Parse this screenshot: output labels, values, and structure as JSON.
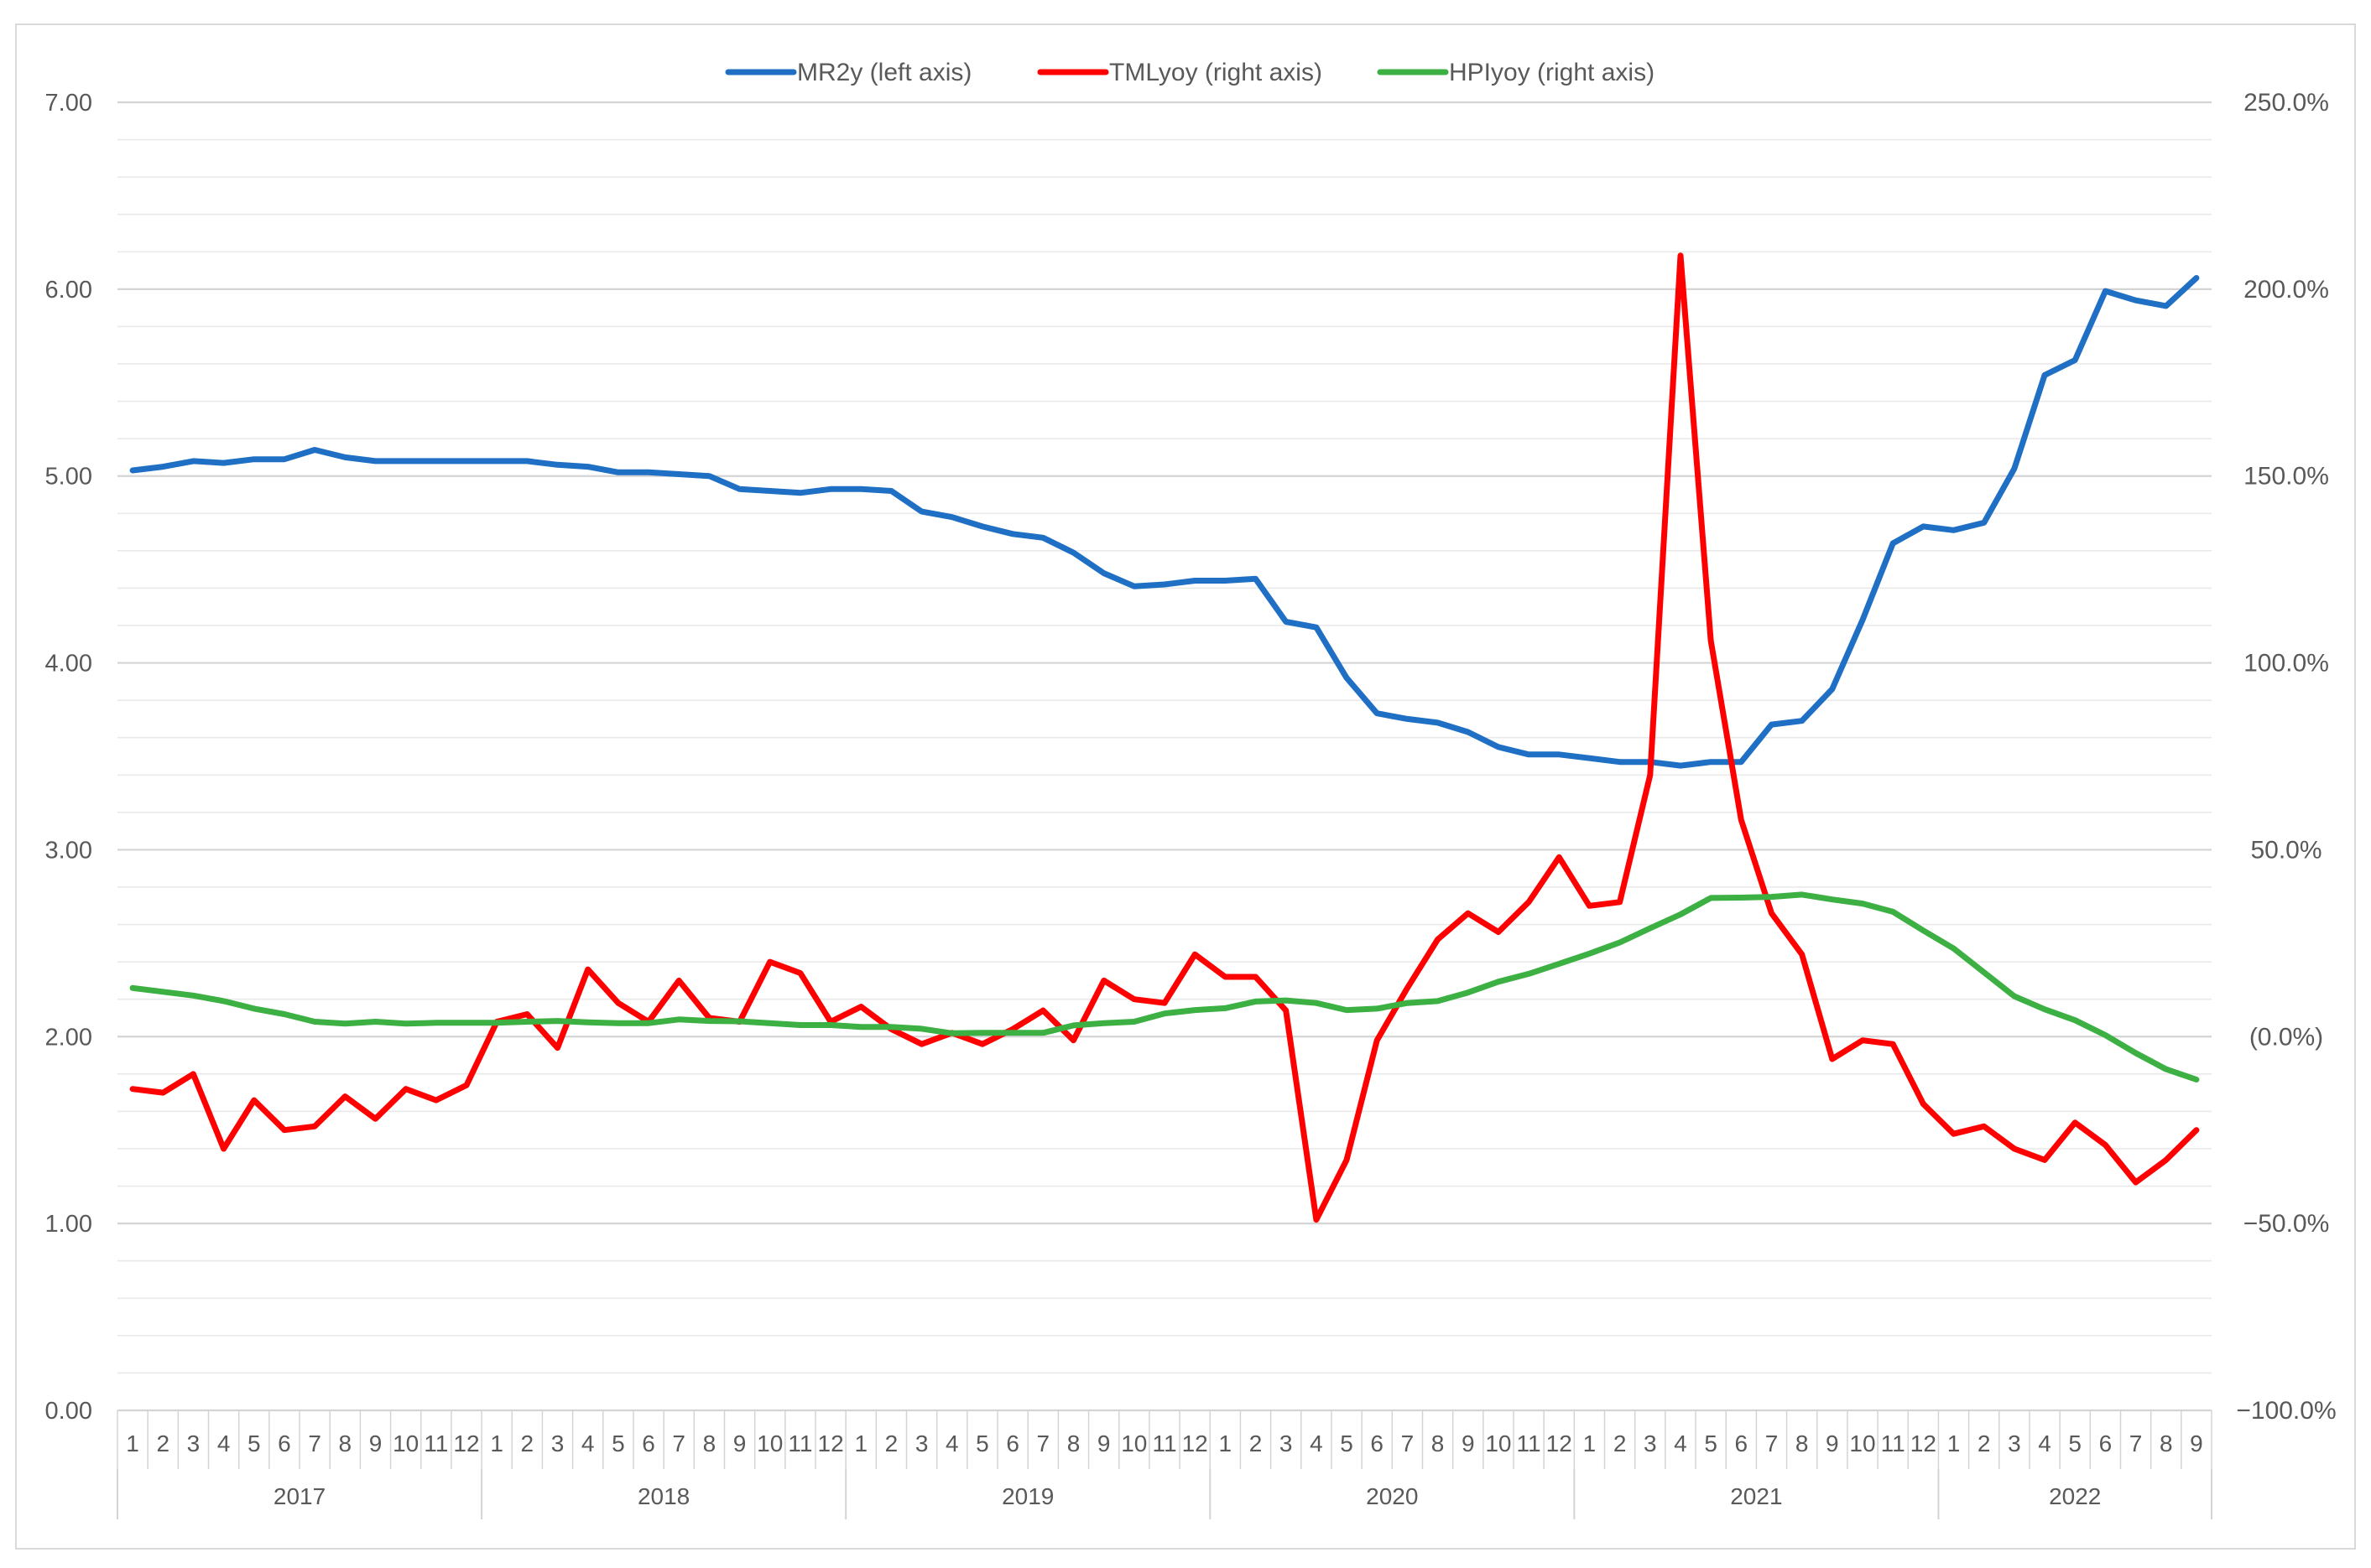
{
  "chart_data": {
    "type": "line",
    "years": [
      "2017",
      "2018",
      "2019",
      "2020",
      "2021",
      "2022"
    ],
    "month_labels": [
      "1",
      "2",
      "3",
      "4",
      "5",
      "6",
      "7",
      "8",
      "9",
      "10",
      "11",
      "12",
      "1",
      "2",
      "3",
      "4",
      "5",
      "6",
      "7",
      "8",
      "9",
      "10",
      "11",
      "12",
      "1",
      "2",
      "3",
      "4",
      "5",
      "6",
      "7",
      "8",
      "9",
      "10",
      "11",
      "12",
      "1",
      "2",
      "3",
      "4",
      "5",
      "6",
      "7",
      "8",
      "9",
      "10",
      "11",
      "12",
      "1",
      "2",
      "3",
      "4",
      "5",
      "6",
      "7",
      "8",
      "9",
      "10",
      "11",
      "12",
      "1",
      "2",
      "3",
      "4",
      "5",
      "6",
      "7",
      "8",
      "9"
    ],
    "y_left": {
      "ticks": [
        "0.00",
        "1.00",
        "2.00",
        "3.00",
        "4.00",
        "5.00",
        "6.00",
        "7.00"
      ],
      "range": [
        0,
        7
      ]
    },
    "y_right": {
      "ticks": [
        "−100.0%",
        "−50.0%",
        "(0.0%)",
        "50.0%",
        "100.0%",
        "150.0%",
        "200.0%",
        "250.0%"
      ],
      "range": [
        -100,
        250
      ]
    },
    "grid": true,
    "legend_position": "top",
    "series": [
      {
        "name": "MR2y (left axis)",
        "axis": "left",
        "color": "#1f6fc5",
        "values": [
          5.03,
          5.05,
          5.08,
          5.07,
          5.09,
          5.09,
          5.14,
          5.1,
          5.08,
          5.08,
          5.08,
          5.08,
          5.08,
          5.08,
          5.06,
          5.05,
          5.02,
          5.02,
          5.01,
          5.0,
          4.93,
          4.92,
          4.91,
          4.93,
          4.93,
          4.92,
          4.81,
          4.78,
          4.73,
          4.69,
          4.67,
          4.59,
          4.48,
          4.41,
          4.42,
          4.44,
          4.44,
          4.45,
          4.22,
          4.19,
          3.92,
          3.73,
          3.7,
          3.68,
          3.63,
          3.55,
          3.51,
          3.51,
          3.49,
          3.47,
          3.47,
          3.45,
          3.47,
          3.47,
          3.67,
          3.69,
          3.86,
          4.23,
          4.64,
          4.73,
          4.71,
          4.75,
          5.04,
          5.54,
          5.62,
          5.99,
          5.94,
          5.91,
          6.06
        ]
      },
      {
        "name": "TMLyoy (right axis)",
        "axis": "right",
        "color": "#ff0000",
        "values": [
          -14,
          -15,
          -10,
          -30,
          -17,
          -25,
          -24,
          -16,
          -22,
          -14,
          -17,
          -13,
          4,
          6,
          -3,
          18,
          9,
          4,
          15,
          5,
          4,
          20,
          17,
          4,
          8,
          2,
          -2,
          1,
          -2,
          2,
          7,
          -1,
          15,
          10,
          9,
          22,
          16,
          16,
          7,
          -49,
          -33,
          -1,
          13,
          26,
          33,
          28,
          36,
          48,
          35,
          36,
          70,
          209,
          106,
          58,
          33,
          22,
          -6,
          -1,
          -2,
          -18,
          -26,
          -24,
          -30,
          -33,
          -23,
          -29,
          -39,
          -33,
          -25
        ]
      },
      {
        "name": "HPIyoy (right axis)",
        "axis": "right",
        "color": "#3cb043",
        "values": [
          13,
          12,
          11,
          9.5,
          7.5,
          6,
          4,
          3.5,
          4,
          3.5,
          3.7,
          3.7,
          3.7,
          4,
          4.2,
          3.8,
          3.6,
          3.6,
          4.6,
          4.2,
          4.1,
          3.6,
          3.1,
          3.1,
          2.6,
          2.6,
          2.1,
          0.9,
          1,
          1,
          1,
          3,
          3.6,
          4,
          6.2,
          7.1,
          7.6,
          9.4,
          9.7,
          9,
          7.1,
          7.5,
          9,
          9.5,
          11.8,
          14.7,
          16.8,
          19.5,
          22.2,
          25.2,
          29,
          32.7,
          37.1,
          37.2,
          37.4,
          38,
          36.7,
          35.6,
          33.4,
          28.4,
          23.6,
          17.2,
          10.8,
          7.3,
          4.4,
          0.4,
          -4.4,
          -8.7,
          -11.5
        ]
      }
    ]
  }
}
